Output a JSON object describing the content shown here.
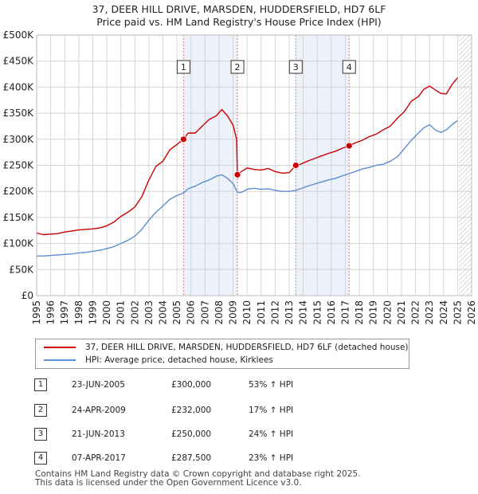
{
  "header": {
    "title_line1": "37, DEER HILL DRIVE, MARSDEN, HUDDERSFIELD, HD7 6LF",
    "title_line2": "Price paid vs. HM Land Registry's House Price Index (HPI)"
  },
  "legend": {
    "property_label": "37, DEER HILL DRIVE, MARSDEN, HUDDERSFIELD, HD7 6LF (detached house)",
    "hpi_label": "HPI: Average price, detached house, Kirklees"
  },
  "colors": {
    "property": "#cc0000",
    "hpi": "#5b8fd0",
    "shade": "#dce6f5",
    "grid": "#d4d4d4",
    "vline": "#e08080"
  },
  "sales": [
    {
      "num": "1",
      "date": "23-JUN-2005",
      "price": "£300,000",
      "hpi": "53% ↑ HPI"
    },
    {
      "num": "2",
      "date": "24-APR-2009",
      "price": "£232,000",
      "hpi": "17% ↑ HPI"
    },
    {
      "num": "3",
      "date": "21-JUN-2013",
      "price": "£250,000",
      "hpi": "24% ↑ HPI"
    },
    {
      "num": "4",
      "date": "07-APR-2017",
      "price": "£287,500",
      "hpi": "23% ↑ HPI"
    }
  ],
  "footer": {
    "line1": "Contains HM Land Registry data © Crown copyright and database right 2025.",
    "line2": "This data is licensed under the Open Government Licence v3.0."
  },
  "chart_data": {
    "type": "line",
    "title": "37, DEER HILL DRIVE, MARSDEN, HUDDERSFIELD, HD7 6LF — Price paid vs. HM Land Registry's House Price Index (HPI)",
    "xlim": [
      1995,
      2026
    ],
    "ylim": [
      0,
      500000
    ],
    "x_ticks": [
      1995,
      1996,
      1997,
      1998,
      1999,
      2000,
      2001,
      2002,
      2003,
      2004,
      2005,
      2006,
      2007,
      2008,
      2009,
      2010,
      2011,
      2012,
      2013,
      2014,
      2015,
      2016,
      2017,
      2018,
      2019,
      2020,
      2021,
      2022,
      2023,
      2024,
      2025,
      2026
    ],
    "y_ticks": [
      {
        "value": 0,
        "label": "£0"
      },
      {
        "value": 50000,
        "label": "£50K"
      },
      {
        "value": 100000,
        "label": "£100K"
      },
      {
        "value": 150000,
        "label": "£150K"
      },
      {
        "value": 200000,
        "label": "£200K"
      },
      {
        "value": 250000,
        "label": "£250K"
      },
      {
        "value": 300000,
        "label": "£300K"
      },
      {
        "value": 350000,
        "label": "£350K"
      },
      {
        "value": 400000,
        "label": "£400K"
      },
      {
        "value": 450000,
        "label": "£450K"
      },
      {
        "value": 500000,
        "label": "£500K"
      }
    ],
    "shaded_ranges": [
      [
        2005.47,
        2009.31
      ],
      [
        2013.47,
        2017.27
      ]
    ],
    "forecast_start": 2025.1,
    "sale_markers": [
      {
        "label": "1",
        "x": 2005.47,
        "y": 300000
      },
      {
        "label": "2",
        "x": 2009.31,
        "y": 232000
      },
      {
        "label": "3",
        "x": 2013.47,
        "y": 250000
      },
      {
        "label": "4",
        "x": 2017.27,
        "y": 287500
      }
    ],
    "series": [
      {
        "name": "37, DEER HILL DRIVE, MARSDEN, HUDDERSFIELD, HD7 6LF (detached house)",
        "color": "#cc0000",
        "x": [
          1995.0,
          1995.5,
          1996.0,
          1996.5,
          1997.0,
          1997.5,
          1998.0,
          1998.5,
          1999.0,
          1999.5,
          2000.0,
          2000.5,
          2001.0,
          2001.5,
          2002.0,
          2002.5,
          2003.0,
          2003.5,
          2004.0,
          2004.5,
          2005.0,
          2005.47,
          2005.8,
          2006.3,
          2006.8,
          2007.3,
          2007.8,
          2008.2,
          2008.6,
          2009.0,
          2009.25,
          2009.31,
          2009.6,
          2010.0,
          2010.5,
          2011.0,
          2011.5,
          2012.0,
          2012.5,
          2013.0,
          2013.47,
          2013.8,
          2014.3,
          2014.8,
          2015.3,
          2015.8,
          2016.3,
          2016.8,
          2017.27,
          2017.7,
          2018.2,
          2018.7,
          2019.2,
          2019.7,
          2020.2,
          2020.7,
          2021.2,
          2021.7,
          2022.2,
          2022.6,
          2023.0,
          2023.4,
          2023.8,
          2024.2,
          2024.6,
          2025.0
        ],
        "y": [
          120000,
          117000,
          118000,
          119000,
          122000,
          124000,
          126000,
          127000,
          128000,
          130000,
          134000,
          141000,
          152000,
          160000,
          170000,
          190000,
          222000,
          248000,
          258000,
          280000,
          290000,
          300000,
          312000,
          312000,
          325000,
          338000,
          345000,
          357000,
          345000,
          327000,
          300000,
          232000,
          238000,
          245000,
          242000,
          241000,
          244000,
          238000,
          235000,
          236000,
          250000,
          252000,
          258000,
          263000,
          268000,
          273000,
          277000,
          283000,
          287500,
          293000,
          298000,
          305000,
          310000,
          318000,
          325000,
          340000,
          353000,
          373000,
          382000,
          396000,
          402000,
          395000,
          388000,
          387000,
          405000,
          418000
        ]
      },
      {
        "name": "HPI: Average price, detached house, Kirklees",
        "color": "#5b8fd0",
        "x": [
          1995.0,
          1995.5,
          1996.0,
          1996.5,
          1997.0,
          1997.5,
          1998.0,
          1998.5,
          1999.0,
          1999.5,
          2000.0,
          2000.5,
          2001.0,
          2001.5,
          2002.0,
          2002.5,
          2003.0,
          2003.5,
          2004.0,
          2004.5,
          2005.0,
          2005.47,
          2005.8,
          2006.3,
          2006.8,
          2007.3,
          2007.8,
          2008.2,
          2008.6,
          2009.0,
          2009.31,
          2009.6,
          2010.0,
          2010.5,
          2011.0,
          2011.5,
          2012.0,
          2012.5,
          2013.0,
          2013.47,
          2013.8,
          2014.3,
          2014.8,
          2015.3,
          2015.8,
          2016.3,
          2016.8,
          2017.27,
          2017.7,
          2018.2,
          2018.7,
          2019.2,
          2019.7,
          2020.2,
          2020.7,
          2021.2,
          2021.7,
          2022.2,
          2022.6,
          2023.0,
          2023.4,
          2023.8,
          2024.2,
          2024.6,
          2025.0
        ],
        "y": [
          76000,
          76000,
          77000,
          78000,
          79000,
          80000,
          82000,
          83000,
          85000,
          87000,
          90000,
          94000,
          100000,
          106000,
          114000,
          127000,
          145000,
          160000,
          172000,
          185000,
          192000,
          197000,
          205000,
          210000,
          217000,
          222000,
          229000,
          232000,
          225000,
          215000,
          198000,
          198000,
          204000,
          206000,
          204000,
          205000,
          202000,
          200000,
          200000,
          202000,
          205000,
          210000,
          214000,
          218000,
          222000,
          225000,
          230000,
          234000,
          238000,
          243000,
          246000,
          250000,
          252000,
          258000,
          266000,
          282000,
          298000,
          312000,
          322000,
          328000,
          318000,
          313000,
          318000,
          328000,
          336000
        ]
      }
    ]
  }
}
